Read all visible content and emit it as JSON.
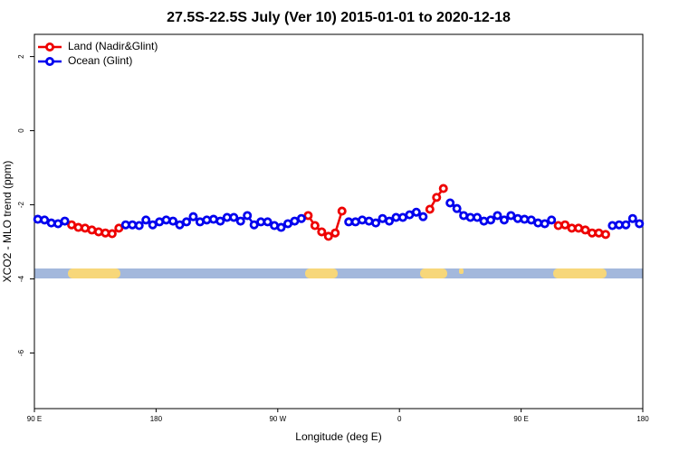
{
  "chart_data": {
    "type": "line",
    "title": "27.5S-22.5S July (Ver 10)   2015-01-01 to 2020-12-18",
    "x_label": "Longitude (deg E)",
    "y_label": "XCO2 - MLO trend (ppm)",
    "x": [
      92.5,
      97.5,
      102.5,
      107.5,
      112.5,
      117.5,
      122.5,
      127.5,
      132.5,
      137.5,
      142.5,
      147.5,
      152.5,
      157.5,
      162.5,
      167.5,
      172.5,
      177.5,
      182.5,
      187.5,
      192.5,
      197.5,
      202.5,
      207.5,
      212.5,
      217.5,
      222.5,
      227.5,
      232.5,
      237.5,
      242.5,
      247.5,
      252.5,
      257.5,
      262.5,
      267.5,
      272.5,
      277.5,
      282.5,
      287.5,
      292.5,
      297.5,
      302.5,
      307.5,
      312.5,
      317.5,
      322.5,
      327.5,
      332.5,
      337.5,
      342.5,
      347.5,
      352.5,
      357.5,
      362.5,
      367.5,
      372.5,
      377.5,
      382.5,
      387.5,
      392.5,
      397.5,
      402.5,
      407.5,
      412.5,
      417.5,
      422.5,
      427.5,
      432.5,
      437.5,
      442.5,
      447.5,
      452.5,
      457.5,
      462.5,
      467.5,
      472.5,
      477.5,
      482.5,
      487.5,
      492.5,
      497.5,
      502.5,
      507.5,
      512.5,
      517.5,
      522.5,
      527.5,
      532.5,
      537.5
    ],
    "series": [
      {
        "name": "Land (Nadir&Glint)",
        "color": "#ee0000",
        "values": [
          null,
          null,
          null,
          null,
          null,
          -2.54,
          -2.61,
          -2.63,
          -2.68,
          -2.73,
          -2.76,
          -2.78,
          -2.63,
          null,
          null,
          null,
          null,
          null,
          null,
          null,
          null,
          null,
          null,
          null,
          null,
          null,
          null,
          null,
          null,
          null,
          null,
          null,
          null,
          null,
          null,
          null,
          null,
          null,
          null,
          null,
          -2.29,
          -2.56,
          -2.73,
          -2.85,
          -2.76,
          -2.17,
          null,
          null,
          null,
          null,
          null,
          null,
          null,
          null,
          null,
          null,
          null,
          null,
          -2.12,
          -1.8,
          -1.56,
          null,
          null,
          null,
          null,
          null,
          null,
          null,
          null,
          null,
          null,
          null,
          null,
          null,
          null,
          null,
          null,
          -2.56,
          -2.54,
          -2.63,
          -2.63,
          -2.68,
          -2.76,
          -2.76,
          -2.8,
          null,
          null,
          null,
          null,
          null
        ]
      },
      {
        "name": "Ocean (Glint)",
        "color": "#0000ee",
        "values": [
          -2.39,
          -2.41,
          -2.49,
          -2.51,
          -2.44,
          null,
          null,
          null,
          null,
          null,
          null,
          null,
          null,
          -2.54,
          -2.54,
          -2.56,
          -2.41,
          -2.54,
          -2.46,
          -2.41,
          -2.44,
          -2.54,
          -2.46,
          -2.32,
          -2.46,
          -2.41,
          -2.39,
          -2.44,
          -2.34,
          -2.34,
          -2.44,
          -2.29,
          -2.54,
          -2.46,
          -2.46,
          -2.56,
          -2.61,
          -2.51,
          -2.44,
          -2.37,
          null,
          null,
          null,
          null,
          null,
          null,
          -2.46,
          -2.46,
          -2.41,
          -2.44,
          -2.49,
          -2.37,
          -2.44,
          -2.34,
          -2.34,
          -2.27,
          -2.2,
          -2.32,
          null,
          null,
          null,
          -1.95,
          -2.1,
          -2.29,
          -2.34,
          -2.34,
          -2.44,
          -2.41,
          -2.29,
          -2.41,
          -2.29,
          -2.37,
          -2.39,
          -2.41,
          -2.49,
          -2.51,
          -2.41,
          null,
          null,
          null,
          null,
          null,
          null,
          null,
          null,
          -2.56,
          -2.54,
          -2.54,
          -2.37,
          -2.51
        ]
      }
    ],
    "xlim": [
      90,
      540
    ],
    "xticks": [
      {
        "value": 90,
        "label": "90 E"
      },
      180,
      {
        "value": 270,
        "label": "90 W"
      },
      {
        "value": 360,
        "label": "0"
      },
      {
        "value": 450,
        "label": "90 E"
      },
      {
        "value": 540,
        "label": "180"
      }
    ],
    "ylim": [
      -7.5,
      2.6
    ],
    "yticks": [
      -6,
      -4,
      -2,
      0,
      2
    ],
    "legend": "top-left"
  }
}
